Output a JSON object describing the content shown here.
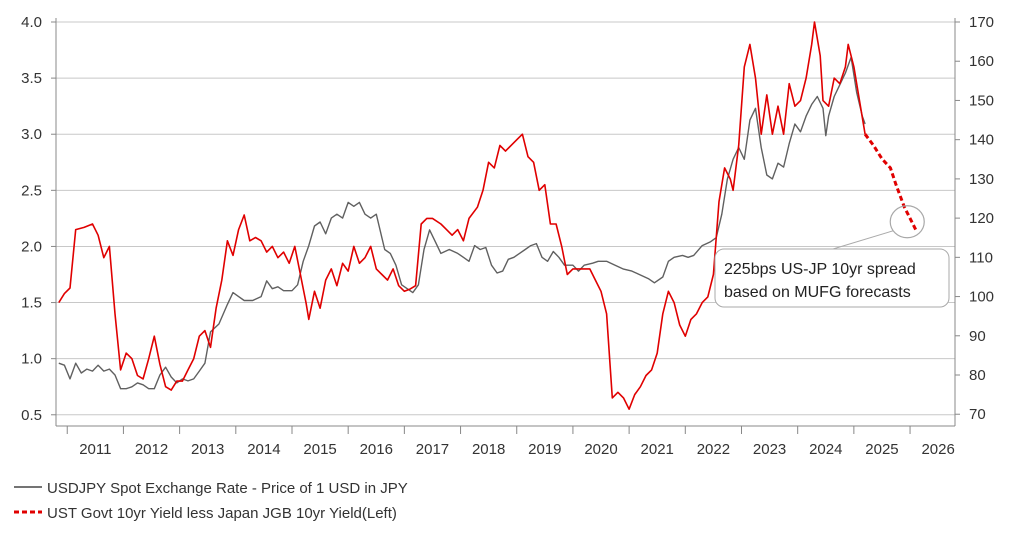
{
  "chart_data": {
    "type": "line",
    "title": "",
    "xlabel": "",
    "ylabel_left": "",
    "ylabel_right": "",
    "xlim": [
      2010.3,
      2026.3
    ],
    "x_ticks": [
      2011,
      2012,
      2013,
      2014,
      2015,
      2016,
      2017,
      2018,
      2019,
      2020,
      2021,
      2022,
      2023,
      2024,
      2025,
      2026
    ],
    "ylim_left": [
      0.4,
      4.0
    ],
    "yticks_left": [
      "4.0",
      "3.5",
      "3.0",
      "2.5",
      "2.0",
      "1.5",
      "1.0",
      "0.5"
    ],
    "ylim_right": [
      67,
      170
    ],
    "yticks_right": [
      "170",
      "160",
      "150",
      "140",
      "130",
      "120",
      "110",
      "100",
      "90",
      "80",
      "70"
    ],
    "grid": "horizontal",
    "legend": {
      "position": "bottom-left",
      "items": [
        "USDJPY Spot Exchange Rate - Price of 1 USD in JPY",
        "UST Govt 10yr Yield less Japan JGB 10yr Yield(Left)"
      ]
    },
    "annotation": {
      "line1": "225bps US-JP 10yr spread",
      "line2": "based on MUFG forecasts",
      "target_x": 2025.45,
      "target_y": 2.22
    },
    "series": [
      {
        "axis": "right",
        "color": "#606060",
        "style": "solid",
        "points": [
          [
            2010.35,
            83
          ],
          [
            2010.45,
            82.5
          ],
          [
            2010.55,
            79
          ],
          [
            2010.65,
            83
          ],
          [
            2010.75,
            80.5
          ],
          [
            2010.85,
            81.5
          ],
          [
            2010.95,
            81
          ],
          [
            2011.05,
            82.5
          ],
          [
            2011.15,
            81
          ],
          [
            2011.25,
            81.5
          ],
          [
            2011.35,
            80
          ],
          [
            2011.45,
            76.5
          ],
          [
            2011.55,
            76.5
          ],
          [
            2011.65,
            77
          ],
          [
            2011.75,
            78
          ],
          [
            2011.85,
            77.5
          ],
          [
            2011.95,
            76.5
          ],
          [
            2012.05,
            76.5
          ],
          [
            2012.15,
            80
          ],
          [
            2012.25,
            82
          ],
          [
            2012.35,
            79.5
          ],
          [
            2012.45,
            78
          ],
          [
            2012.55,
            79
          ],
          [
            2012.65,
            78.5
          ],
          [
            2012.75,
            79
          ],
          [
            2012.85,
            81
          ],
          [
            2012.95,
            83
          ],
          [
            2013.05,
            91
          ],
          [
            2013.2,
            93
          ],
          [
            2013.35,
            98
          ],
          [
            2013.45,
            101
          ],
          [
            2013.55,
            100
          ],
          [
            2013.65,
            99
          ],
          [
            2013.8,
            99
          ],
          [
            2013.95,
            100
          ],
          [
            2014.05,
            104
          ],
          [
            2014.15,
            102
          ],
          [
            2014.25,
            102.5
          ],
          [
            2014.35,
            101.5
          ],
          [
            2014.5,
            101.5
          ],
          [
            2014.6,
            103
          ],
          [
            2014.7,
            109
          ],
          [
            2014.8,
            113
          ],
          [
            2014.9,
            118
          ],
          [
            2015.0,
            119
          ],
          [
            2015.1,
            116
          ],
          [
            2015.2,
            120
          ],
          [
            2015.3,
            121
          ],
          [
            2015.4,
            120
          ],
          [
            2015.5,
            124
          ],
          [
            2015.6,
            123
          ],
          [
            2015.7,
            124
          ],
          [
            2015.8,
            121
          ],
          [
            2015.9,
            120
          ],
          [
            2016.0,
            121
          ],
          [
            2016.05,
            118
          ],
          [
            2016.15,
            112
          ],
          [
            2016.25,
            111
          ],
          [
            2016.35,
            108
          ],
          [
            2016.45,
            103
          ],
          [
            2016.55,
            102
          ],
          [
            2016.65,
            101
          ],
          [
            2016.75,
            103
          ],
          [
            2016.85,
            112
          ],
          [
            2016.95,
            117
          ],
          [
            2017.05,
            114
          ],
          [
            2017.15,
            111
          ],
          [
            2017.3,
            112
          ],
          [
            2017.45,
            111
          ],
          [
            2017.55,
            110
          ],
          [
            2017.65,
            109
          ],
          [
            2017.75,
            113
          ],
          [
            2017.85,
            112
          ],
          [
            2017.95,
            112.5
          ],
          [
            2018.05,
            108
          ],
          [
            2018.15,
            106
          ],
          [
            2018.25,
            106.5
          ],
          [
            2018.35,
            109.5
          ],
          [
            2018.45,
            110
          ],
          [
            2018.55,
            111
          ],
          [
            2018.65,
            112
          ],
          [
            2018.75,
            113
          ],
          [
            2018.85,
            113.5
          ],
          [
            2018.95,
            110
          ],
          [
            2019.05,
            109
          ],
          [
            2019.15,
            111.5
          ],
          [
            2019.25,
            110
          ],
          [
            2019.35,
            108
          ],
          [
            2019.5,
            108
          ],
          [
            2019.6,
            106.5
          ],
          [
            2019.7,
            108
          ],
          [
            2019.85,
            108.5
          ],
          [
            2019.95,
            109
          ],
          [
            2020.1,
            109
          ],
          [
            2020.25,
            108
          ],
          [
            2020.4,
            107
          ],
          [
            2020.55,
            106.5
          ],
          [
            2020.7,
            105.5
          ],
          [
            2020.85,
            104.5
          ],
          [
            2020.95,
            103.5
          ],
          [
            2021.1,
            105
          ],
          [
            2021.2,
            109
          ],
          [
            2021.3,
            110
          ],
          [
            2021.45,
            110.5
          ],
          [
            2021.55,
            110
          ],
          [
            2021.65,
            110.5
          ],
          [
            2021.8,
            113
          ],
          [
            2021.95,
            114
          ],
          [
            2022.05,
            115
          ],
          [
            2022.15,
            121
          ],
          [
            2022.25,
            130
          ],
          [
            2022.35,
            135
          ],
          [
            2022.45,
            138
          ],
          [
            2022.55,
            135
          ],
          [
            2022.65,
            145
          ],
          [
            2022.75,
            148
          ],
          [
            2022.85,
            138
          ],
          [
            2022.95,
            131
          ],
          [
            2023.05,
            130
          ],
          [
            2023.15,
            134
          ],
          [
            2023.25,
            133
          ],
          [
            2023.35,
            139
          ],
          [
            2023.45,
            144
          ],
          [
            2023.55,
            142
          ],
          [
            2023.65,
            146
          ],
          [
            2023.75,
            149
          ],
          [
            2023.85,
            151
          ],
          [
            2023.95,
            148
          ],
          [
            2024.0,
            141
          ],
          [
            2024.05,
            146
          ],
          [
            2024.15,
            151
          ],
          [
            2024.25,
            154
          ],
          [
            2024.35,
            157
          ],
          [
            2024.45,
            161
          ],
          [
            2024.55,
            152
          ],
          [
            2024.65,
            146
          ],
          [
            2024.7,
            144
          ]
        ]
      },
      {
        "axis": "left",
        "color": "#e00000",
        "style": "solid",
        "points": [
          [
            2010.35,
            1.5
          ],
          [
            2010.45,
            1.58
          ],
          [
            2010.55,
            1.63
          ],
          [
            2010.65,
            2.15
          ],
          [
            2010.8,
            2.17
          ],
          [
            2010.95,
            2.2
          ],
          [
            2011.05,
            2.1
          ],
          [
            2011.15,
            1.9
          ],
          [
            2011.25,
            2.0
          ],
          [
            2011.35,
            1.4
          ],
          [
            2011.45,
            0.9
          ],
          [
            2011.55,
            1.05
          ],
          [
            2011.65,
            1.0
          ],
          [
            2011.75,
            0.85
          ],
          [
            2011.85,
            0.82
          ],
          [
            2011.95,
            1.0
          ],
          [
            2012.05,
            1.2
          ],
          [
            2012.15,
            0.95
          ],
          [
            2012.25,
            0.75
          ],
          [
            2012.35,
            0.72
          ],
          [
            2012.45,
            0.8
          ],
          [
            2012.55,
            0.8
          ],
          [
            2012.65,
            0.9
          ],
          [
            2012.75,
            1.0
          ],
          [
            2012.85,
            1.2
          ],
          [
            2012.95,
            1.25
          ],
          [
            2013.05,
            1.1
          ],
          [
            2013.15,
            1.45
          ],
          [
            2013.25,
            1.7
          ],
          [
            2013.35,
            2.05
          ],
          [
            2013.45,
            1.92
          ],
          [
            2013.55,
            2.15
          ],
          [
            2013.65,
            2.28
          ],
          [
            2013.75,
            2.05
          ],
          [
            2013.85,
            2.08
          ],
          [
            2013.95,
            2.05
          ],
          [
            2014.05,
            1.95
          ],
          [
            2014.15,
            2.0
          ],
          [
            2014.25,
            1.9
          ],
          [
            2014.35,
            1.95
          ],
          [
            2014.45,
            1.85
          ],
          [
            2014.55,
            2.0
          ],
          [
            2014.65,
            1.75
          ],
          [
            2014.75,
            1.5
          ],
          [
            2014.8,
            1.35
          ],
          [
            2014.9,
            1.6
          ],
          [
            2015.0,
            1.45
          ],
          [
            2015.1,
            1.7
          ],
          [
            2015.2,
            1.8
          ],
          [
            2015.3,
            1.65
          ],
          [
            2015.4,
            1.85
          ],
          [
            2015.5,
            1.78
          ],
          [
            2015.6,
            2.0
          ],
          [
            2015.7,
            1.85
          ],
          [
            2015.8,
            1.9
          ],
          [
            2015.9,
            2.0
          ],
          [
            2016.0,
            1.8
          ],
          [
            2016.1,
            1.75
          ],
          [
            2016.2,
            1.7
          ],
          [
            2016.3,
            1.8
          ],
          [
            2016.4,
            1.65
          ],
          [
            2016.5,
            1.6
          ],
          [
            2016.6,
            1.62
          ],
          [
            2016.7,
            1.65
          ],
          [
            2016.8,
            2.2
          ],
          [
            2016.9,
            2.25
          ],
          [
            2017.0,
            2.25
          ],
          [
            2017.15,
            2.2
          ],
          [
            2017.25,
            2.15
          ],
          [
            2017.35,
            2.1
          ],
          [
            2017.45,
            2.15
          ],
          [
            2017.55,
            2.05
          ],
          [
            2017.65,
            2.25
          ],
          [
            2017.8,
            2.35
          ],
          [
            2017.9,
            2.5
          ],
          [
            2018.0,
            2.75
          ],
          [
            2018.1,
            2.7
          ],
          [
            2018.2,
            2.9
          ],
          [
            2018.3,
            2.85
          ],
          [
            2018.4,
            2.9
          ],
          [
            2018.5,
            2.95
          ],
          [
            2018.6,
            3.0
          ],
          [
            2018.7,
            2.8
          ],
          [
            2018.8,
            2.75
          ],
          [
            2018.9,
            2.5
          ],
          [
            2019.0,
            2.55
          ],
          [
            2019.1,
            2.2
          ],
          [
            2019.2,
            2.2
          ],
          [
            2019.3,
            2.0
          ],
          [
            2019.4,
            1.75
          ],
          [
            2019.5,
            1.8
          ],
          [
            2019.6,
            1.8
          ],
          [
            2019.7,
            1.8
          ],
          [
            2019.8,
            1.8
          ],
          [
            2019.9,
            1.7
          ],
          [
            2020.0,
            1.6
          ],
          [
            2020.1,
            1.4
          ],
          [
            2020.2,
            0.65
          ],
          [
            2020.3,
            0.7
          ],
          [
            2020.4,
            0.65
          ],
          [
            2020.5,
            0.55
          ],
          [
            2020.6,
            0.68
          ],
          [
            2020.7,
            0.75
          ],
          [
            2020.8,
            0.85
          ],
          [
            2020.9,
            0.9
          ],
          [
            2021.0,
            1.05
          ],
          [
            2021.1,
            1.4
          ],
          [
            2021.2,
            1.6
          ],
          [
            2021.3,
            1.5
          ],
          [
            2021.4,
            1.3
          ],
          [
            2021.5,
            1.2
          ],
          [
            2021.6,
            1.35
          ],
          [
            2021.7,
            1.4
          ],
          [
            2021.8,
            1.5
          ],
          [
            2021.9,
            1.55
          ],
          [
            2022.0,
            1.75
          ],
          [
            2022.1,
            2.4
          ],
          [
            2022.2,
            2.7
          ],
          [
            2022.3,
            2.6
          ],
          [
            2022.35,
            2.5
          ],
          [
            2022.45,
            2.9
          ],
          [
            2022.55,
            3.6
          ],
          [
            2022.65,
            3.8
          ],
          [
            2022.75,
            3.5
          ],
          [
            2022.85,
            3.0
          ],
          [
            2022.95,
            3.35
          ],
          [
            2023.05,
            3.0
          ],
          [
            2023.15,
            3.25
          ],
          [
            2023.25,
            3.0
          ],
          [
            2023.35,
            3.45
          ],
          [
            2023.45,
            3.25
          ],
          [
            2023.55,
            3.3
          ],
          [
            2023.65,
            3.5
          ],
          [
            2023.75,
            3.8
          ],
          [
            2023.8,
            4.0
          ],
          [
            2023.9,
            3.7
          ],
          [
            2023.95,
            3.3
          ],
          [
            2024.05,
            3.25
          ],
          [
            2024.15,
            3.5
          ],
          [
            2024.25,
            3.45
          ],
          [
            2024.35,
            3.6
          ],
          [
            2024.4,
            3.8
          ],
          [
            2024.5,
            3.6
          ],
          [
            2024.6,
            3.3
          ],
          [
            2024.7,
            3.0
          ]
        ]
      },
      {
        "axis": "left",
        "color": "#e00000",
        "style": "dashed",
        "points": [
          [
            2024.7,
            3.0
          ],
          [
            2024.85,
            2.9
          ],
          [
            2025.0,
            2.78
          ],
          [
            2025.15,
            2.7
          ],
          [
            2025.25,
            2.55
          ],
          [
            2025.4,
            2.35
          ],
          [
            2025.5,
            2.25
          ],
          [
            2025.6,
            2.15
          ]
        ]
      }
    ]
  }
}
